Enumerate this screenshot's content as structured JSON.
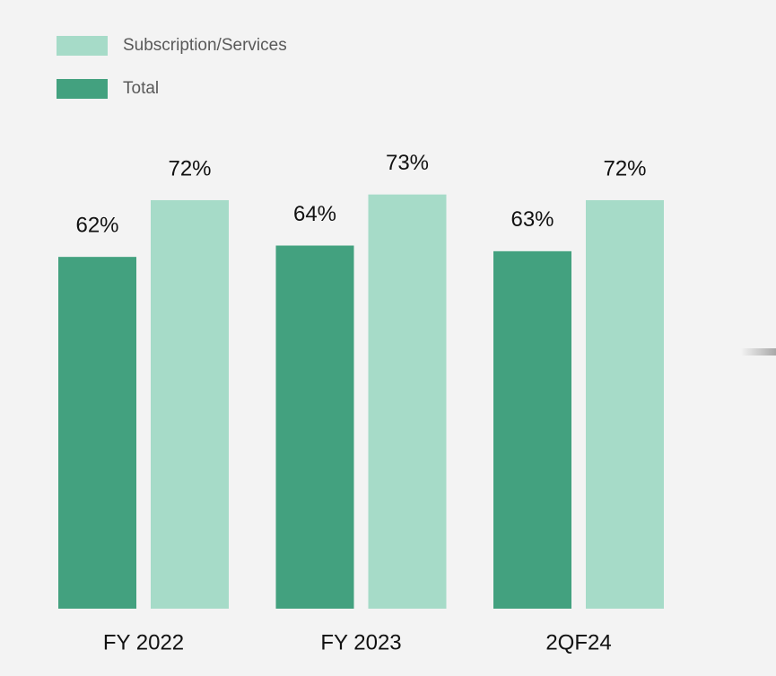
{
  "chart_data": {
    "type": "bar",
    "categories": [
      "FY 2022",
      "FY 2023",
      "2QF24"
    ],
    "series": [
      {
        "name": "Subscription/Services",
        "color": "#a6dbc8",
        "values": [
          72,
          73,
          72
        ],
        "value_labels": [
          "72%",
          "73%",
          "72%"
        ]
      },
      {
        "name": "Total",
        "color": "#43a17f",
        "values": [
          62,
          64,
          63
        ],
        "value_labels": [
          "62%",
          "64%",
          "63%"
        ]
      }
    ]
  }
}
